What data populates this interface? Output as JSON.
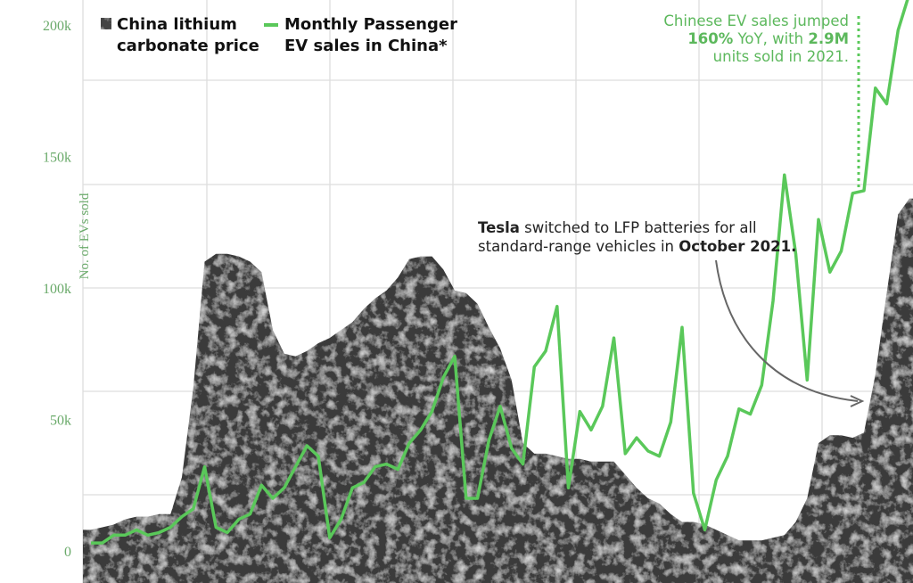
{
  "chart_data": {
    "type": "line",
    "title": "",
    "ylabel": "No. of EVs sold",
    "xlabel": "",
    "ylim": [
      0,
      200000
    ],
    "yticks": [
      0,
      50000,
      100000,
      150000,
      200000
    ],
    "ytick_labels": [
      "0",
      "50k",
      "100k",
      "150k",
      "200k"
    ],
    "grid": true,
    "legend_placement": "top-left",
    "legend": [
      {
        "label_line1": "China lithium",
        "label_line2": "carbonate price",
        "marker": "textured-square"
      },
      {
        "label_line1": "Monthly Passenger",
        "label_line2": "EV sales in China*",
        "marker": "green-line"
      }
    ],
    "colors": {
      "ev_line": "#5ac85a",
      "lithium_area": "#3a3a3a",
      "axis_text": "#6aaa6a",
      "annotation_green": "#5cb85c",
      "grid": "#dddddd"
    },
    "series": [
      {
        "name": "Monthly Passenger EV sales in China*",
        "type": "line",
        "values": [
          3000,
          3000,
          6000,
          6000,
          8000,
          6000,
          7000,
          9000,
          13000,
          16000,
          32000,
          9000,
          7000,
          12000,
          14000,
          25000,
          20000,
          24000,
          32000,
          40000,
          36000,
          5000,
          12000,
          24000,
          26000,
          32000,
          33000,
          31000,
          41000,
          46000,
          53000,
          66000,
          74000,
          20000,
          20000,
          42000,
          55000,
          39000,
          33000,
          70000,
          76000,
          93000,
          24000,
          53000,
          46000,
          55000,
          81000,
          37000,
          43000,
          38000,
          36000,
          49000,
          85000,
          22000,
          8000,
          27000,
          36000,
          54000,
          52000,
          63000,
          95000,
          143000,
          113000,
          65000,
          126000,
          106000,
          114000,
          136000,
          137000,
          176000,
          170000,
          198000,
          212000
        ]
      },
      {
        "name": "China lithium carbonate price",
        "type": "area",
        "values": [
          8000,
          9000,
          10000,
          12000,
          13000,
          13000,
          14000,
          14000,
          28000,
          62000,
          110000,
          113000,
          113000,
          112000,
          110000,
          106000,
          84000,
          75000,
          74000,
          76000,
          79000,
          81000,
          84000,
          87000,
          92000,
          96000,
          99000,
          104000,
          111000,
          112000,
          112000,
          107000,
          99000,
          98000,
          94000,
          85000,
          77000,
          65000,
          41000,
          37000,
          37000,
          36000,
          35000,
          35000,
          34000,
          34000,
          34000,
          29000,
          24000,
          20000,
          18000,
          14000,
          11000,
          11000,
          10000,
          8000,
          6000,
          4000,
          4000,
          4000,
          5000,
          6000,
          11000,
          20000,
          41000,
          44000,
          44000,
          43000,
          45000,
          67000,
          98000,
          128000,
          134000
        ]
      }
    ],
    "annotations": {
      "ev_jump": {
        "line1": "Chinese EV sales jumped",
        "bold_pct": "160%",
        "mid": " YoY, with ",
        "bold_units": "2.9M",
        "line3": "units sold in 2021."
      },
      "tesla": {
        "bold_tesla": "Tesla",
        "line1_rest": " switched to LFP batteries for all",
        "line2_start": "standard-range vehicles in ",
        "bold_date": "October 2021."
      }
    }
  }
}
